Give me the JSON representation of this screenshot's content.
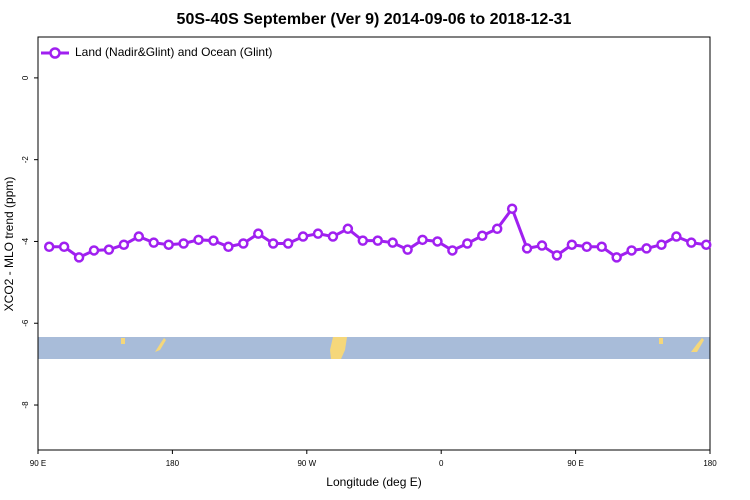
{
  "chart_data": {
    "type": "line",
    "title": "50S-40S September (Ver 9)   2014-09-06 to 2018-12-31",
    "xlabel": "Longitude (deg E)",
    "ylabel": "XCO2 - MLO trend (ppm)",
    "x": [
      97.5,
      107.5,
      117.5,
      127.5,
      137.5,
      147.5,
      157.5,
      167.5,
      177.5,
      187.5,
      197.5,
      207.5,
      217.5,
      227.5,
      237.5,
      247.5,
      257.5,
      267.5,
      277.5,
      287.5,
      297.5,
      307.5,
      317.5,
      327.5,
      337.5,
      347.5,
      357.5,
      367.5,
      377.5,
      387.5,
      397.5,
      407.5,
      417.5,
      427.5,
      437.5,
      447.5,
      457.5,
      467.5,
      477.5,
      487.5,
      497.5,
      507.5,
      517.5,
      527.5,
      537.5
    ],
    "series": [
      {
        "name": "Land (Nadir&Glint) and Ocean (Glint)",
        "color": "#a020f0",
        "values": [
          -4.13,
          -4.13,
          -4.39,
          -4.22,
          -4.2,
          -4.08,
          -3.88,
          -4.03,
          -4.08,
          -4.05,
          -3.96,
          -3.98,
          -4.13,
          -4.05,
          -3.81,
          -4.05,
          -4.05,
          -3.88,
          -3.81,
          -3.88,
          -3.69,
          -3.98,
          -3.98,
          -4.03,
          -4.2,
          -3.96,
          -4.0,
          -4.22,
          -4.05,
          -3.86,
          -3.69,
          -3.2,
          -4.17,
          -4.1,
          -4.34,
          -4.08,
          -4.13,
          -4.13,
          -4.39,
          -4.22,
          -4.17,
          -4.08,
          -3.88,
          -4.03,
          -4.08
        ]
      }
    ],
    "xlim": [
      90,
      540
    ],
    "ylim": [
      -9.1,
      1
    ],
    "xticks": [
      {
        "value": 90,
        "label": "90 E"
      },
      180,
      {
        "value": 270,
        "label": "90 W"
      },
      {
        "value": 360,
        "label": "0"
      },
      {
        "value": 450,
        "label": "90 E"
      },
      {
        "value": 540,
        "label": "180"
      }
    ],
    "yticks": [
      0,
      -2,
      -4,
      -6,
      -8
    ],
    "legend": "upper left"
  }
}
